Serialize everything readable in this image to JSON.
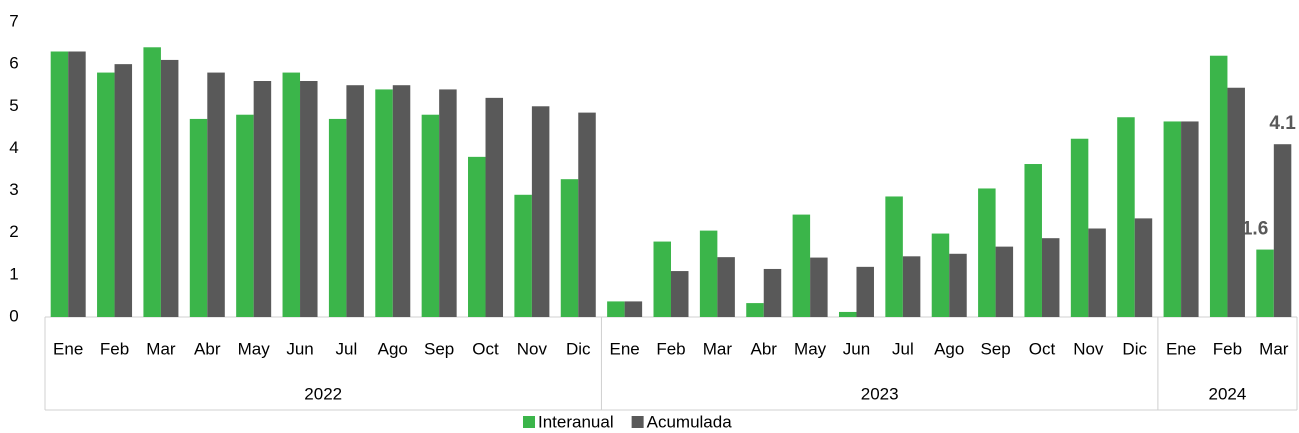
{
  "chart_data": {
    "type": "bar",
    "groups": [
      {
        "label": "2022",
        "months": [
          "Ene",
          "Feb",
          "Mar",
          "Abr",
          "May",
          "Jun",
          "Jul",
          "Ago",
          "Sep",
          "Oct",
          "Nov",
          "Dic"
        ]
      },
      {
        "label": "2023",
        "months": [
          "Ene",
          "Feb",
          "Mar",
          "Abr",
          "May",
          "Jun",
          "Jul",
          "Ago",
          "Sep",
          "Oct",
          "Nov",
          "Dic"
        ]
      },
      {
        "label": "2024",
        "months": [
          "Ene",
          "Feb",
          "Mar"
        ]
      }
    ],
    "series": [
      {
        "name": "Interanual",
        "color": "#3bb54a",
        "values": [
          6.3,
          5.8,
          6.4,
          4.7,
          4.8,
          5.8,
          4.7,
          5.4,
          4.8,
          3.8,
          2.9,
          3.27,
          0.37,
          1.79,
          2.05,
          0.33,
          2.43,
          0.12,
          2.86,
          1.98,
          3.05,
          3.63,
          4.23,
          4.74,
          4.64,
          6.2,
          1.6
        ]
      },
      {
        "name": "Acumulada",
        "color": "#595959",
        "values": [
          6.3,
          6.0,
          6.1,
          5.8,
          5.6,
          5.6,
          5.5,
          5.5,
          5.4,
          5.2,
          5.0,
          4.85,
          0.37,
          1.09,
          1.42,
          1.14,
          1.41,
          1.19,
          1.44,
          1.5,
          1.67,
          1.87,
          2.1,
          2.34,
          4.64,
          5.44,
          4.1
        ]
      }
    ],
    "label_points": [
      26
    ],
    "ylim": [
      0,
      7
    ],
    "yticks": [
      0,
      1,
      2,
      3,
      4,
      5,
      6,
      7
    ],
    "legend": "bottom"
  }
}
